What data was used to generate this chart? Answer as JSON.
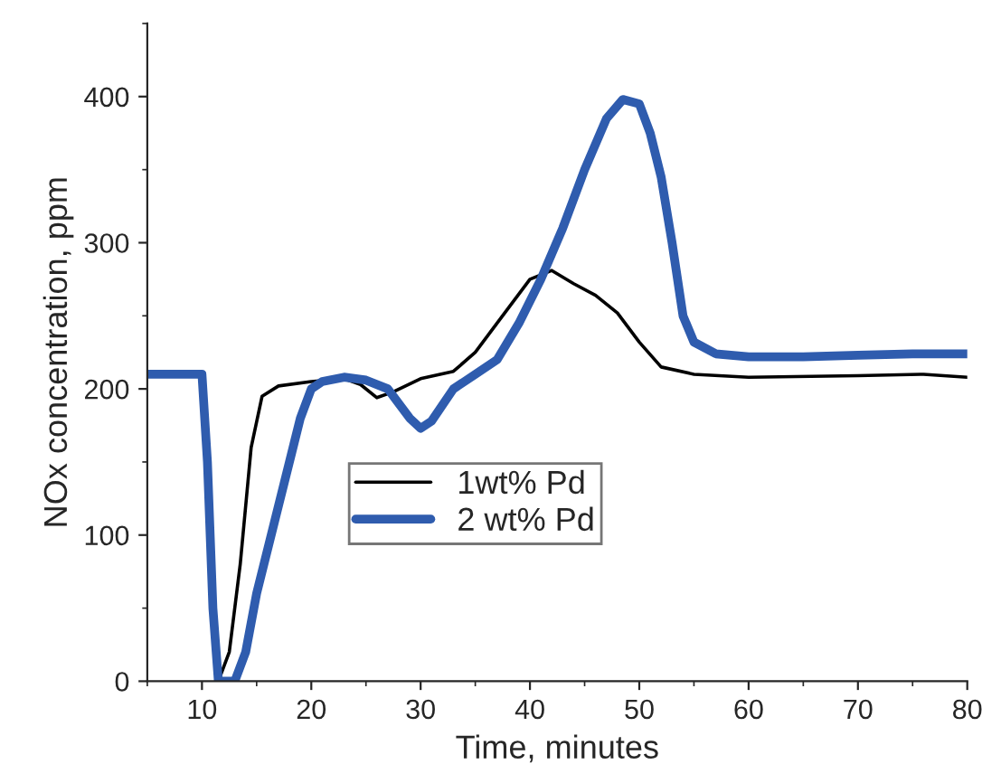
{
  "chart_data": {
    "type": "line",
    "xlabel": "Time, minutes",
    "ylabel": "NOx concentration, ppm",
    "xlim": [
      5,
      80
    ],
    "ylim": [
      0,
      450
    ],
    "xticks": [
      10,
      20,
      30,
      40,
      50,
      60,
      70,
      80
    ],
    "yticks": [
      0,
      100,
      200,
      300,
      400
    ],
    "legend": "center",
    "grid": false,
    "series": [
      {
        "name": "1wt% Pd",
        "color": "#000000",
        "x": [
          11.5,
          12.5,
          13.5,
          14.5,
          15.5,
          17,
          20,
          23,
          24.5,
          26,
          27.5,
          30,
          33,
          35,
          38,
          40,
          42,
          44,
          46,
          48,
          50,
          52,
          55,
          60,
          70,
          76,
          80
        ],
        "values": [
          0,
          20,
          80,
          160,
          195,
          202,
          205,
          207,
          203,
          194,
          198,
          207,
          212,
          225,
          255,
          275,
          281,
          272,
          264,
          252,
          232,
          215,
          210,
          208,
          209,
          210,
          208
        ]
      },
      {
        "name": "2 wt% Pd",
        "color": "#2f5cae",
        "x": [
          5,
          10,
          10.5,
          11,
          11.5,
          13,
          14,
          15,
          17,
          19,
          20,
          21,
          23,
          25,
          27,
          29,
          30,
          31,
          33,
          35,
          37,
          39,
          41,
          43,
          45,
          47,
          48.5,
          50,
          51,
          52,
          53,
          54,
          55,
          57,
          60,
          65,
          70,
          75,
          80
        ],
        "values": [
          210,
          210,
          150,
          50,
          0,
          0,
          20,
          60,
          120,
          180,
          200,
          205,
          208,
          206,
          200,
          180,
          173,
          178,
          200,
          210,
          220,
          245,
          275,
          310,
          350,
          385,
          398,
          395,
          375,
          345,
          300,
          250,
          232,
          224,
          222,
          222,
          223,
          224,
          224
        ]
      }
    ]
  }
}
